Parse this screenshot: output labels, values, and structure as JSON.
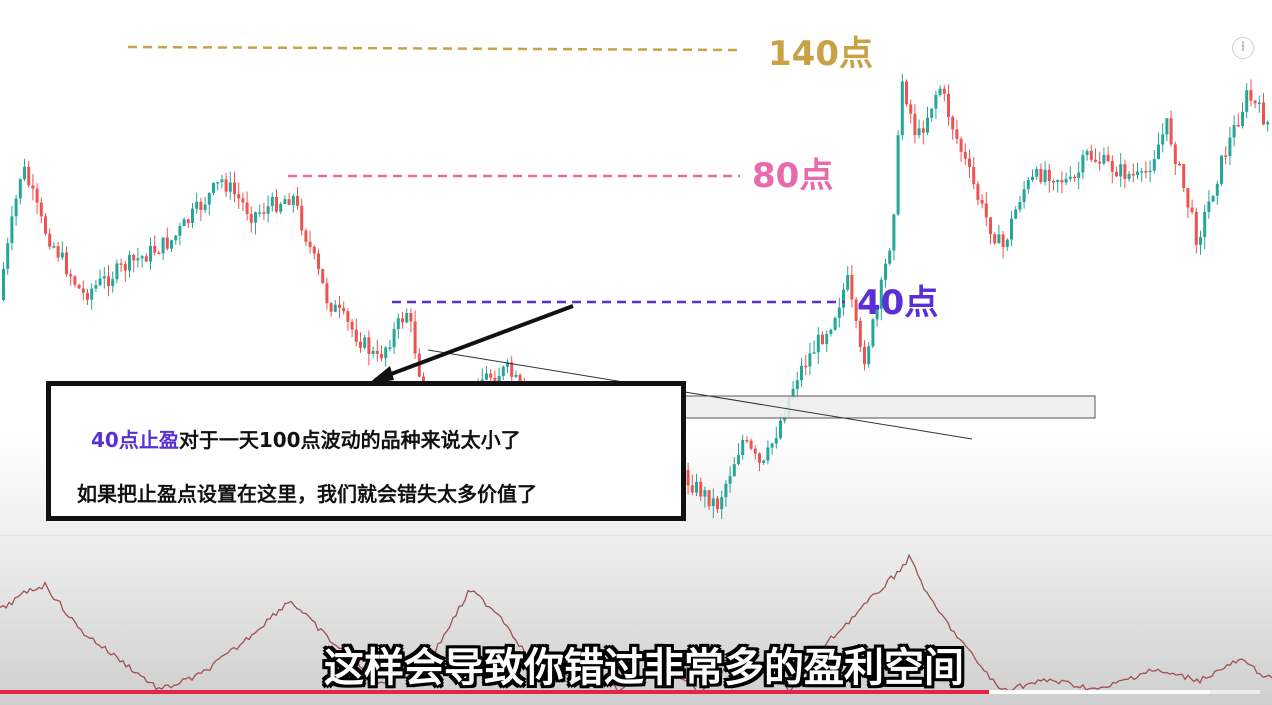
{
  "chart_data": {
    "type": "candlestick",
    "series": [],
    "up_color": "#26a69a",
    "down_color": "#ef5350",
    "indicator_color": "#a05050",
    "levels": [
      {
        "label": "140点",
        "color": "#c9a246"
      },
      {
        "label": "80点",
        "color": "#e86aaa"
      },
      {
        "label": "40点",
        "color": "#5a2fd6"
      }
    ]
  },
  "annotation": {
    "accent_text": "40点止盈",
    "line1_rest": "对于一天100点波动的品种来说太小了",
    "line2": "如果把止盈点设置在这里，我们就会错失太多价值了"
  },
  "subtitle": "这样会导致你错过非常多的盈利空间",
  "player": {
    "info_icon": "i",
    "progress": 0.785
  }
}
